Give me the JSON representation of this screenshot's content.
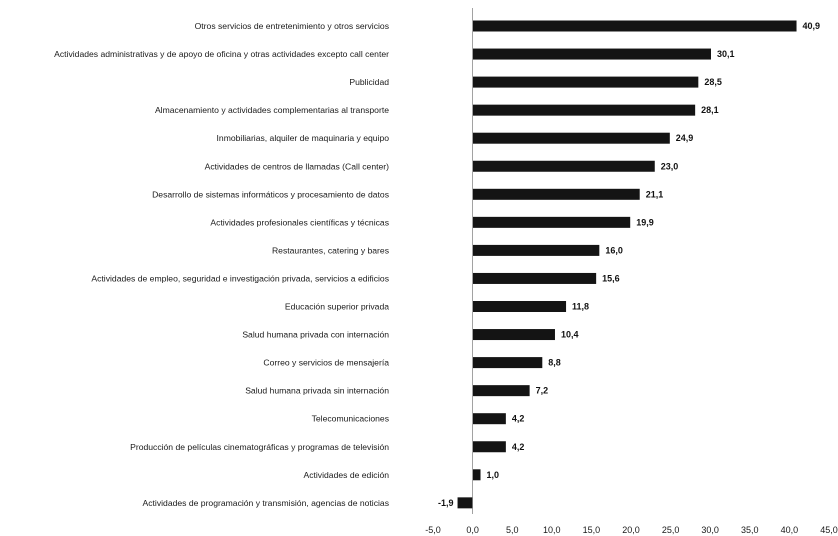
{
  "chart_data": {
    "type": "bar",
    "orientation": "horizontal",
    "title": "",
    "xlabel": "",
    "ylabel": "",
    "categories": [
      "Otros servicios de entretenimiento y otros servicios",
      "Actividades administrativas y de apoyo de oficina y otras actividades excepto call center",
      "Publicidad",
      "Almacenamiento y actividades complementarias al transporte",
      "Inmobiliarias, alquiler de maquinaria y equipo",
      "Actividades de centros de llamadas (Call center)",
      "Desarrollo de sistemas informáticos y procesamiento de datos",
      "Actividades profesionales científicas y técnicas",
      "Restaurantes, catering y bares",
      "Actividades de empleo, seguridad e investigación privada, servicios a edificios",
      "Educación superior privada",
      "Salud humana privada con internación",
      "Correo y servicios de mensajería",
      "Salud humana privada sin internación",
      "Telecomunicaciones",
      "Producción de películas cinematográficas y programas de televisión",
      "Actividades de edición",
      "Actividades de programación y transmisión, agencias de noticias"
    ],
    "values": [
      40.9,
      30.1,
      28.5,
      28.1,
      24.9,
      23.0,
      21.1,
      19.9,
      16.0,
      15.6,
      11.8,
      10.4,
      8.8,
      7.2,
      4.2,
      4.2,
      1.0,
      -1.9
    ],
    "value_labels": [
      "40,9",
      "30,1",
      "28,5",
      "28,1",
      "24,9",
      "23,0",
      "21,1",
      "19,9",
      "16,0",
      "15,6",
      "11,8",
      "10,4",
      "8,8",
      "7,2",
      "4,2",
      "4,2",
      "1,0",
      "-1,9"
    ],
    "xlim": [
      -5,
      45
    ],
    "x_ticks": [
      -5,
      0,
      5,
      10,
      15,
      20,
      25,
      30,
      35,
      40,
      45
    ],
    "x_tick_labels": [
      "-5,0",
      "0,0",
      "5,0",
      "10,0",
      "15,0",
      "20,0",
      "25,0",
      "30,0",
      "35,0",
      "40,0",
      "45,0"
    ],
    "grid": false,
    "legend": "none",
    "bar_color": "#141414"
  }
}
